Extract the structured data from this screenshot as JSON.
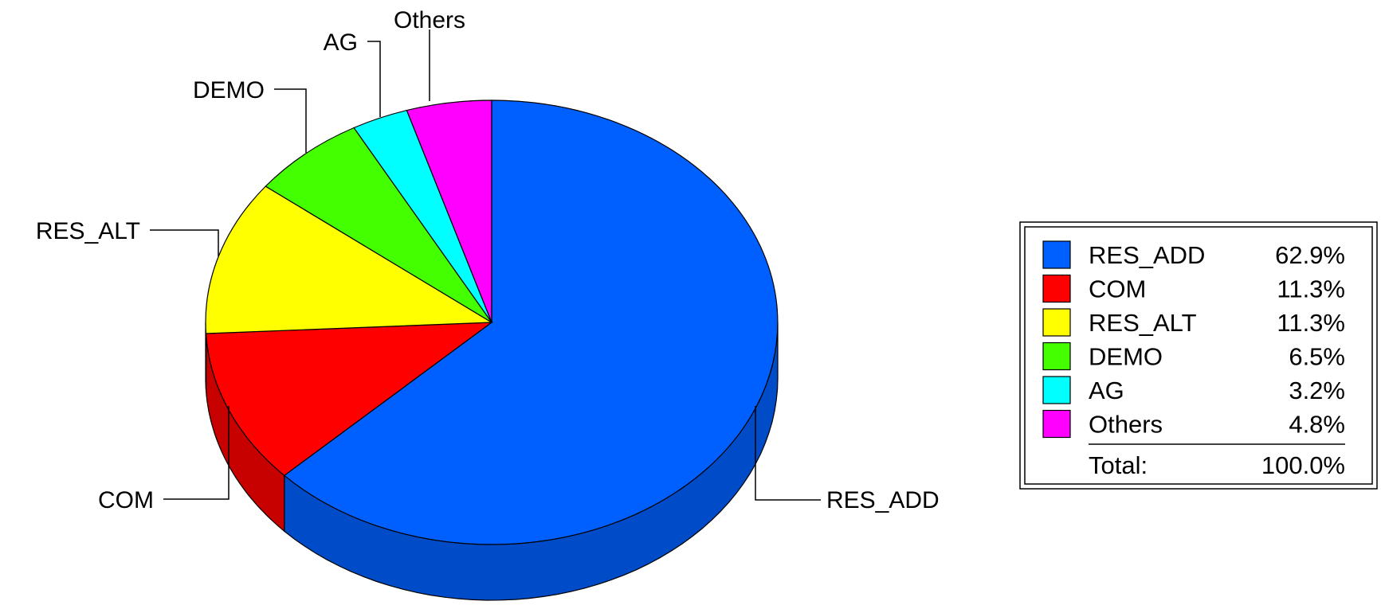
{
  "chart_data": {
    "type": "pie",
    "style": "3d",
    "categories": [
      "RES_ADD",
      "COM",
      "RES_ALT",
      "DEMO",
      "AG",
      "Others"
    ],
    "values": [
      62.9,
      11.3,
      11.3,
      6.5,
      3.2,
      4.8
    ],
    "value_labels": [
      "62.9%",
      "11.3%",
      "11.3%",
      "6.5%",
      "3.2%",
      "4.8%"
    ],
    "colors": [
      "#0060FF",
      "#FF0000",
      "#FFFF00",
      "#44FF00",
      "#00FFFF",
      "#FF00FF"
    ],
    "legend_position": "right",
    "total_label": "Total:",
    "total_value": "100.0%"
  }
}
